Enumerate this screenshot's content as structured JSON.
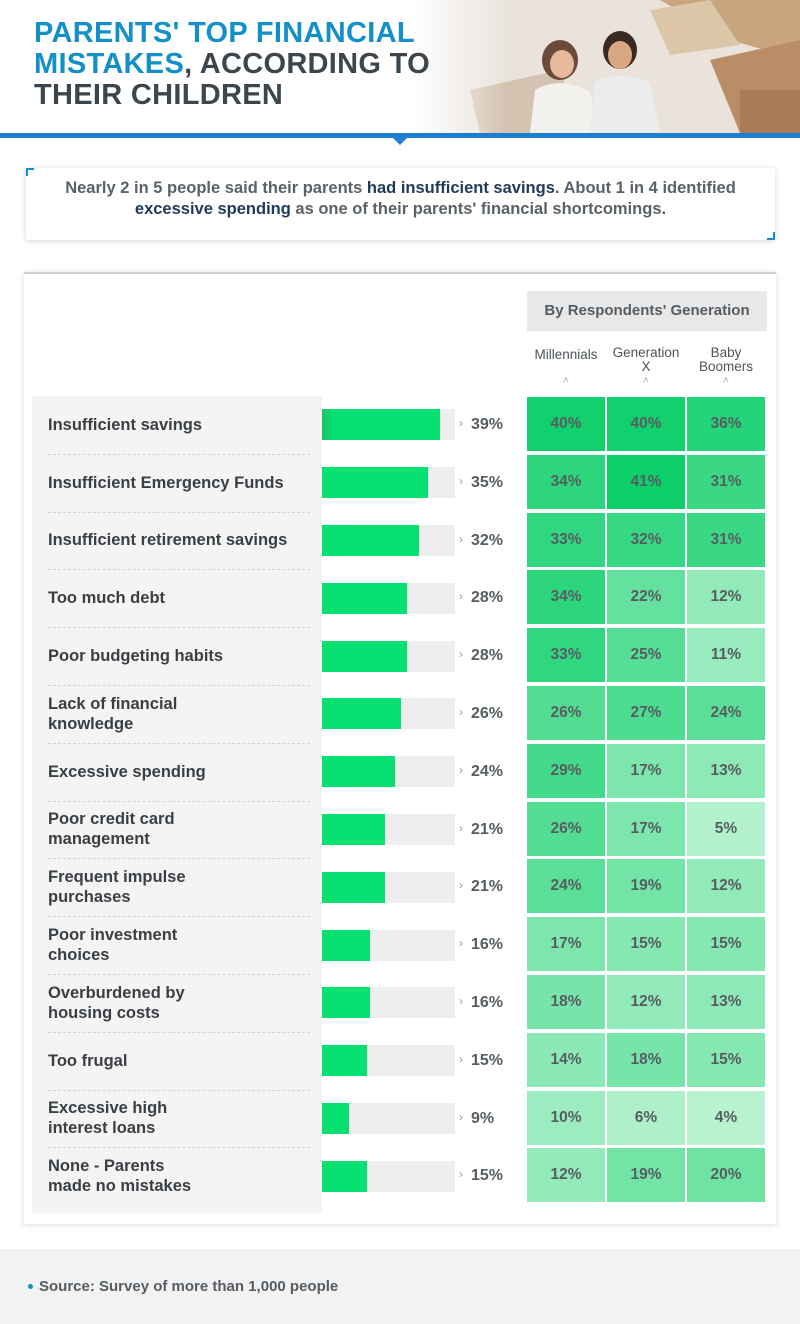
{
  "header": {
    "title_highlight": "PARENTS' TOP FINANCIAL MISTAKES",
    "title_rest": ", ACCORDING TO THEIR CHILDREN"
  },
  "intro": {
    "p1": "Nearly 2 in 5 people said their parents ",
    "h1": "had insufficient savings",
    "p2": ". About 1 in 4 identified ",
    "h2": "excessive spending",
    "p3": " as one of their parents' financial shortcomings."
  },
  "chart_data": {
    "type": "bar",
    "categories": [
      "Insufficient savings",
      "Insufficient Emergency Funds",
      "Insufficient retirement savings",
      "Too much debt",
      "Poor budgeting habits",
      "Lack of financial knowledge",
      "Excessive spending",
      "Poor credit card management",
      "Frequent impulse purchases",
      "Poor investment choices",
      "Overburdened by housing costs",
      "Too frugal",
      "Excessive high interest loans",
      "None - Parents made no mistakes"
    ],
    "values": [
      39,
      35,
      32,
      28,
      28,
      26,
      24,
      21,
      21,
      16,
      16,
      15,
      9,
      15
    ],
    "value_labels": [
      "39%",
      "35%",
      "32%",
      "28%",
      "28%",
      "26%",
      "24%",
      "21%",
      "21%",
      "16%",
      "16%",
      "15%",
      "9%",
      "15%"
    ],
    "xlim": [
      0,
      100
    ],
    "generation_table": {
      "title": "By Respondents' Generation",
      "columns": [
        "Millennials",
        "Generation X",
        "Baby Boomers"
      ],
      "values": [
        [
          40,
          40,
          36
        ],
        [
          34,
          41,
          31
        ],
        [
          33,
          32,
          31
        ],
        [
          34,
          22,
          12
        ],
        [
          33,
          25,
          11
        ],
        [
          26,
          27,
          24
        ],
        [
          29,
          17,
          13
        ],
        [
          26,
          17,
          5
        ],
        [
          24,
          19,
          12
        ],
        [
          17,
          15,
          15
        ],
        [
          18,
          12,
          13
        ],
        [
          14,
          18,
          15
        ],
        [
          10,
          6,
          4
        ],
        [
          12,
          19,
          20
        ]
      ]
    }
  },
  "colors": {
    "bar": "#05e070",
    "accent_blue": "#1390c8",
    "heat_low": "#b8f2cf",
    "heat_high": "#0ccf6a"
  },
  "source": {
    "text": "Source: Survey of more than 1,000 people"
  }
}
